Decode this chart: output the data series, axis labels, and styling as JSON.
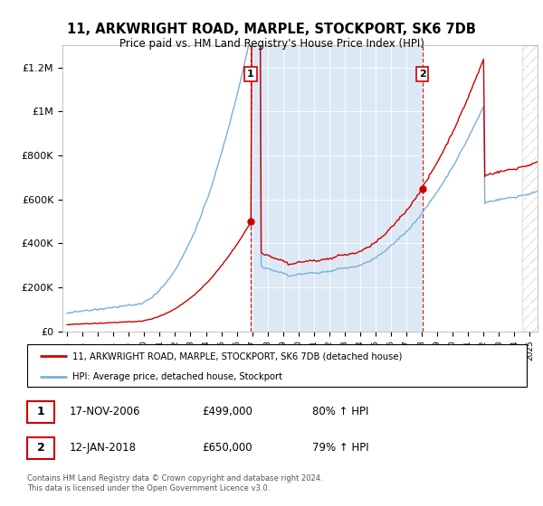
{
  "title": "11, ARKWRIGHT ROAD, MARPLE, STOCKPORT, SK6 7DB",
  "subtitle": "Price paid vs. HM Land Registry's House Price Index (HPI)",
  "ylabel_ticks": [
    "£0",
    "£200K",
    "£400K",
    "£600K",
    "£800K",
    "£1M",
    "£1.2M"
  ],
  "ytick_values": [
    0,
    200000,
    400000,
    600000,
    800000,
    1000000,
    1200000
  ],
  "ylim": [
    0,
    1300000
  ],
  "background_color": "#dce9f5",
  "hpi_line_color": "#7ab0d4",
  "price_line_color": "#cc0000",
  "vspan_color": "#dce9f5",
  "transaction1_year": 2006.9,
  "transaction1_price": 499000,
  "transaction2_year": 2018.04,
  "transaction2_price": 650000,
  "legend_label_red": "11, ARKWRIGHT ROAD, MARPLE, STOCKPORT, SK6 7DB (detached house)",
  "legend_label_blue": "HPI: Average price, detached house, Stockport",
  "table_row1": [
    "1",
    "17-NOV-2006",
    "£499,000",
    "80% ↑ HPI"
  ],
  "table_row2": [
    "2",
    "12-JAN-2018",
    "£650,000",
    "79% ↑ HPI"
  ],
  "footer": "Contains HM Land Registry data © Crown copyright and database right 2024.\nThis data is licensed under the Open Government Licence v3.0."
}
